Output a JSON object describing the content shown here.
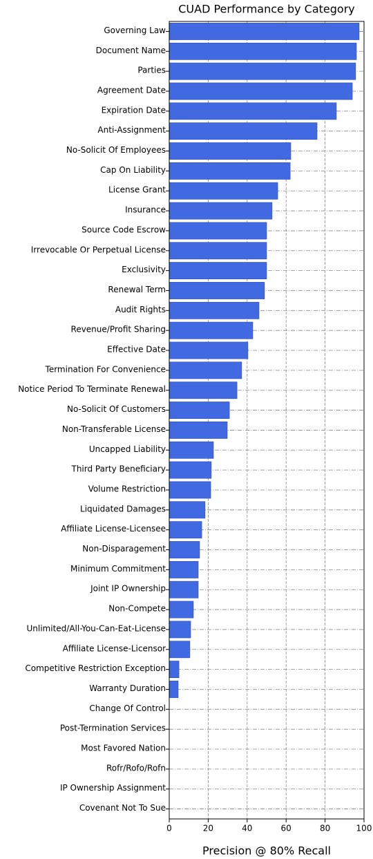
{
  "chart_data": {
    "type": "barh",
    "title": "CUAD Performance by Category",
    "xlabel": "Precision @ 80% Recall",
    "categories": [
      "Governing Law",
      "Document Name",
      "Parties",
      "Agreement Date",
      "Expiration Date",
      "Anti-Assignment",
      "No-Solicit Of Employees",
      "Cap On Liability",
      "License Grant",
      "Insurance",
      "Source Code Escrow",
      "Irrevocable Or Perpetual License",
      "Exclusivity",
      "Renewal Term",
      "Audit Rights",
      "Revenue/Profit Sharing",
      "Effective Date",
      "Termination For Convenience",
      "Notice Period To Terminate Renewal",
      "No-Solicit Of Customers",
      "Non-Transferable License",
      "Uncapped Liability",
      "Third Party Beneficiary",
      "Volume Restriction",
      "Liquidated Damages",
      "Affiliate License-Licensee",
      "Non-Disparagement",
      "Minimum Commitment",
      "Joint IP Ownership",
      "Non-Compete",
      "Unlimited/All-You-Can-Eat-License",
      "Affiliate License-Licensor",
      "Competitive Restriction Exception",
      "Warranty Duration",
      "Change Of Control",
      "Post-Termination Services",
      "Most Favored Nation",
      "Rofr/Rofo/Rofn",
      "IP Ownership Assignment",
      "Covenant Not To Sue"
    ],
    "values": [
      97.5,
      96.1,
      95.7,
      94,
      85.8,
      75.9,
      62.4,
      62.1,
      55.7,
      52.8,
      50,
      50,
      50,
      48.9,
      46.1,
      42.9,
      40.4,
      37.2,
      34.8,
      30.9,
      29.8,
      22.7,
      21.6,
      21.3,
      18.4,
      16.7,
      15.6,
      14.9,
      14.9,
      12.4,
      11,
      10.6,
      5,
      4.6,
      0,
      0,
      0,
      0,
      0,
      0
    ],
    "color": "#4169e1",
    "xlim": [
      0,
      100
    ],
    "xticks": [
      0,
      20,
      40,
      60,
      80,
      100
    ],
    "grid": true
  }
}
